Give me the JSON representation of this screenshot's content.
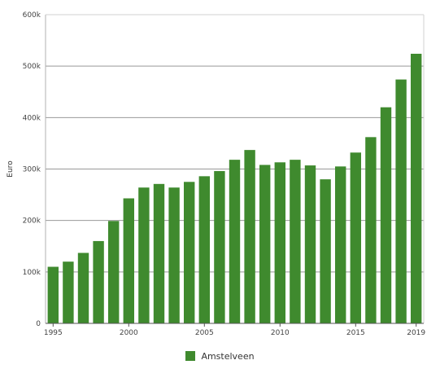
{
  "chart_data": {
    "type": "bar",
    "ylabel": "Euro",
    "ylim": [
      0,
      600000
    ],
    "yticks": [
      0,
      100000,
      200000,
      300000,
      400000,
      500000,
      600000
    ],
    "ytick_labels": [
      "0",
      "100k",
      "200k",
      "300k",
      "400k",
      "500k",
      "600k"
    ],
    "xticks": [
      1995,
      2000,
      2005,
      2010,
      2015,
      2019
    ],
    "grid": "horizontal",
    "legend_position": "bottom-center",
    "bar_color": "#3f8a2e",
    "series": [
      {
        "name": "Amstelveen",
        "x": [
          1995,
          1996,
          1997,
          1998,
          1999,
          2000,
          2001,
          2002,
          2003,
          2004,
          2005,
          2006,
          2007,
          2008,
          2009,
          2010,
          2011,
          2012,
          2013,
          2014,
          2015,
          2016,
          2017,
          2018,
          2019
        ],
        "values": [
          110000,
          120000,
          137000,
          160000,
          199000,
          243000,
          264000,
          271000,
          264000,
          275000,
          286000,
          296000,
          318000,
          337000,
          308000,
          313000,
          318000,
          307000,
          280000,
          305000,
          332000,
          362000,
          420000,
          474000,
          524000
        ]
      }
    ]
  }
}
